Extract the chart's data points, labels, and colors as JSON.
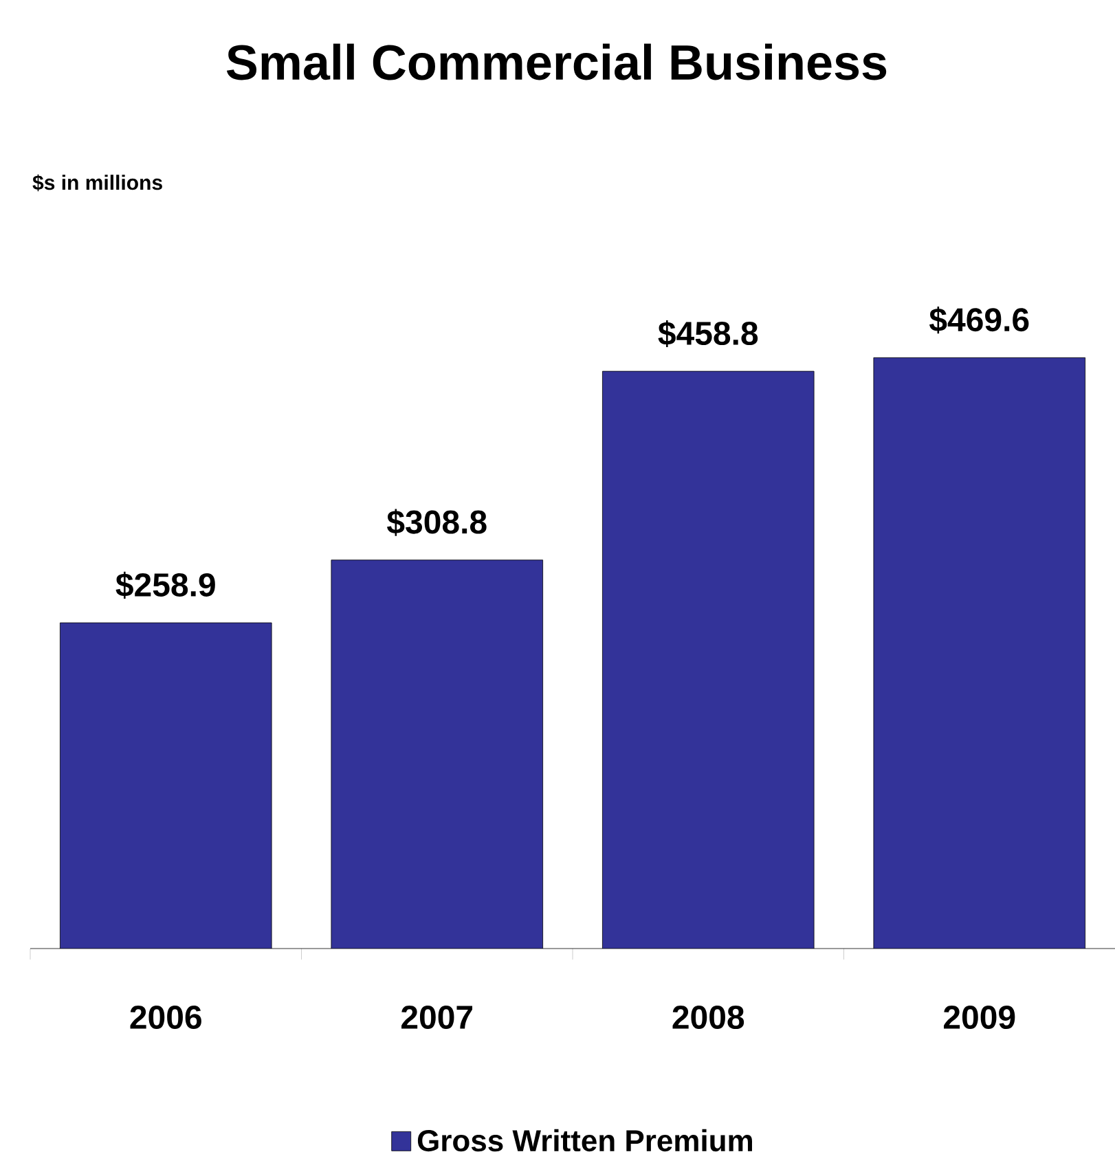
{
  "chart_data": {
    "type": "bar",
    "title": "Small Commercial Business",
    "subtitle": "$s in millions",
    "categories": [
      "2006",
      "2007",
      "2008",
      "2009"
    ],
    "series": [
      {
        "name": "Gross Written Premium",
        "color": "#333399",
        "values": [
          258.9,
          308.8,
          458.8,
          469.6
        ],
        "value_labels": [
          "$258.9",
          "$308.8",
          "$458.8",
          "$469.6"
        ]
      }
    ],
    "legend": "bottom"
  }
}
